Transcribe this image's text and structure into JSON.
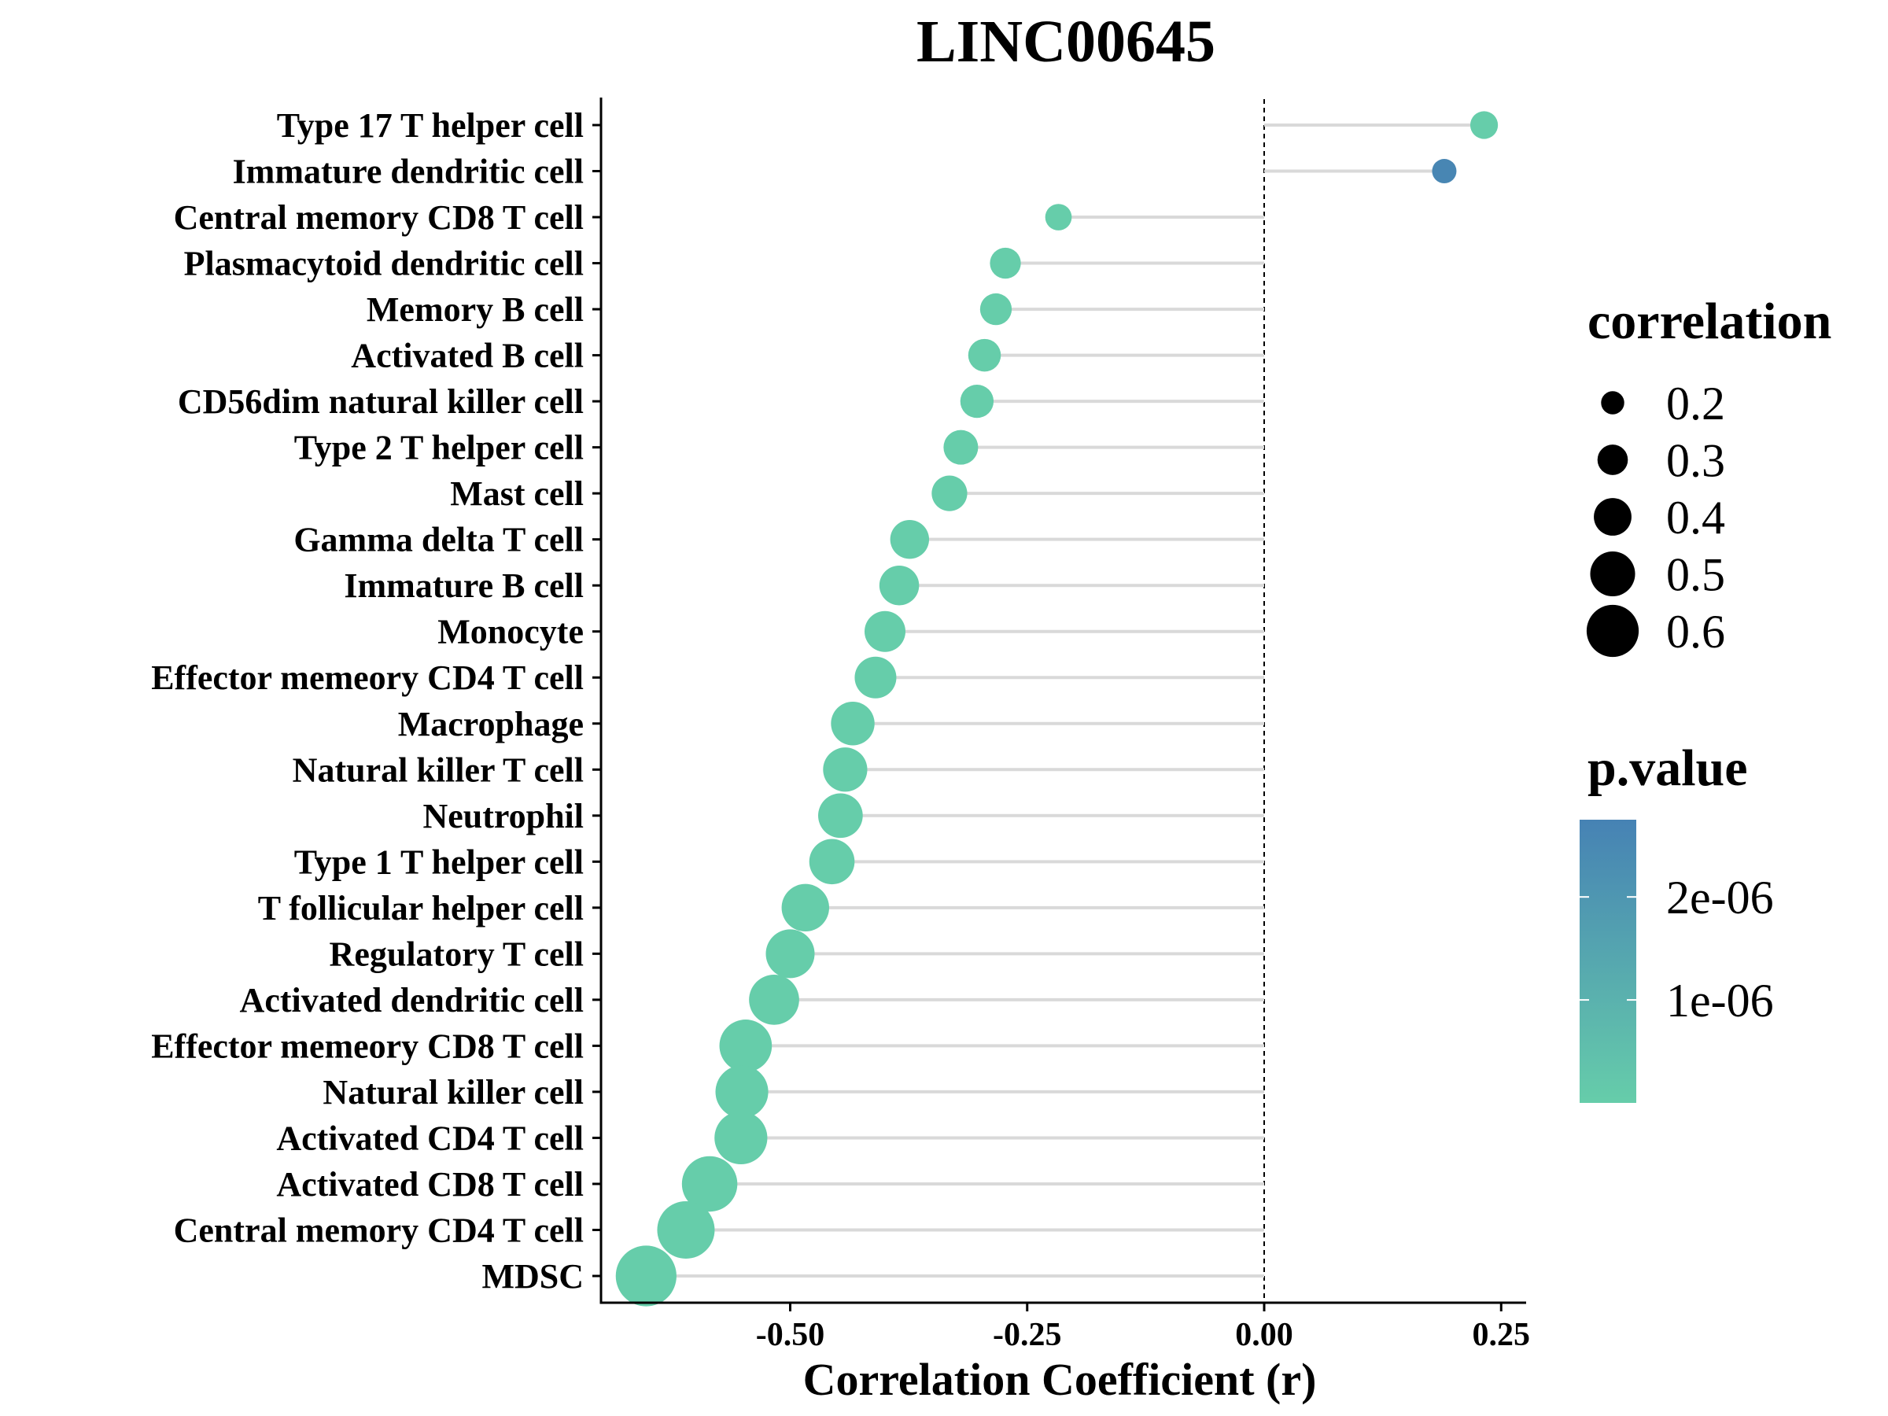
{
  "chart_data": {
    "type": "scatter",
    "subtype": "lollipop",
    "title": "LINC00645",
    "xlabel": "Correlation Coefficient (r)",
    "ylabel": "",
    "xlim": [
      -0.67,
      0.28
    ],
    "xticks": [
      -0.5,
      -0.25,
      0.0,
      0.25
    ],
    "xtick_labels": [
      "-0.50",
      "-0.25",
      "0.00",
      "0.25"
    ],
    "reference_line": 0.0,
    "grid": false,
    "categories": [
      "Type 17 T helper cell",
      "Immature dendritic cell",
      "Central memory CD8 T cell",
      "Plasmacytoid dendritic cell",
      "Memory B cell",
      "Activated B cell",
      "CD56dim natural killer cell",
      "Type 2 T helper cell",
      "Mast cell",
      "Gamma delta T cell",
      "Immature  B cell",
      "Monocyte",
      "Effector memeory CD4 T cell",
      "Macrophage",
      "Natural killer T cell",
      "Neutrophil",
      "Type 1 T helper cell",
      "T follicular helper cell",
      "Regulatory T cell",
      "Activated dendritic cell",
      "Effector memeory CD8 T cell",
      "Natural killer cell",
      "Activated CD4 T cell",
      "Activated CD8 T cell",
      "Central memory CD4 T cell",
      "MDSC"
    ],
    "values": [
      0.232,
      0.19,
      -0.217,
      -0.273,
      -0.283,
      -0.295,
      -0.303,
      -0.32,
      -0.332,
      -0.374,
      -0.385,
      -0.4,
      -0.41,
      -0.434,
      -0.442,
      -0.447,
      -0.456,
      -0.484,
      -0.5,
      -0.517,
      -0.547,
      -0.551,
      -0.552,
      -0.585,
      -0.61,
      -0.652
    ],
    "p_values": [
      1e-08,
      2.6e-06,
      1e-10,
      1e-10,
      1e-10,
      1e-10,
      1e-10,
      1e-10,
      1e-10,
      1e-10,
      1e-10,
      1e-10,
      1e-10,
      1e-10,
      1e-10,
      1e-10,
      1e-10,
      1e-10,
      1e-10,
      1e-10,
      1e-10,
      1e-10,
      1e-10,
      1e-10,
      1e-10,
      1e-10
    ],
    "size_legend": {
      "title": "correlation",
      "values": [
        0.2,
        0.3,
        0.4,
        0.5,
        0.6
      ],
      "labels": [
        "0.2",
        "0.3",
        "0.4",
        "0.5",
        "0.6"
      ]
    },
    "color_legend": {
      "title": "p.value",
      "low_color": "#66CDAA",
      "high_color": "#4682B4",
      "range": [
        0,
        2.75e-06
      ],
      "tick_values": [
        2e-06,
        1e-06
      ],
      "tick_labels": [
        "2e-06",
        "1e-06"
      ]
    },
    "segment_color": "#d9d9d9"
  }
}
